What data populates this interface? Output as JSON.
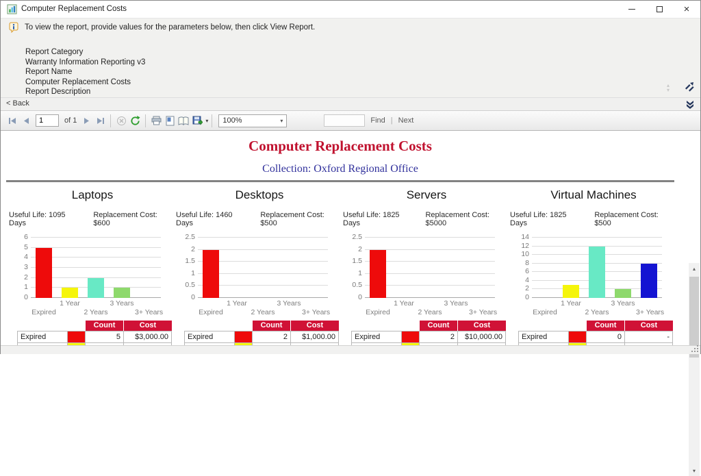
{
  "window": {
    "title": "Computer Replacement Costs"
  },
  "icons": {
    "minimize": "",
    "maximize": "",
    "close": "×",
    "caret_down": "▾",
    "scroll_up": "▴",
    "scroll_down": "▾"
  },
  "params": {
    "instruction": "To view the report, provide values for the parameters below, then click View Report.",
    "report_category_label": "Report Category",
    "report_category_value": "Warranty Information Reporting v3",
    "report_name_label": "Report Name",
    "report_name_value": "Computer Replacement Costs",
    "report_description_label": "Report Description",
    "back_label": "< Back"
  },
  "toolbar": {
    "page_value": "1",
    "page_of": "of 1",
    "zoom_value": "100%",
    "find_label": "Find",
    "divider": "|",
    "next_label": "Next"
  },
  "report": {
    "title": "Computer Replacement Costs",
    "subtitle": "Collection: Oxford Regional Office",
    "title_color": "#c0122f",
    "subtitle_color": "#31319c"
  },
  "colors": {
    "table_header_bg": "#d01236",
    "gridline": "#dcdcdc"
  },
  "sections": [
    {
      "name": "Laptops",
      "useful_life": "Useful Life: 1095 Days",
      "replacement_cost": "Replacement Cost: $600",
      "table": {
        "count_header": "Count",
        "cost_header": "Cost",
        "row_label": "Expired",
        "count": "5",
        "cost": "$3,000.00",
        "swatch_color": "#ee0b0b",
        "peek_color": "#f5f50b"
      }
    },
    {
      "name": "Desktops",
      "useful_life": "Useful Life: 1460 Days",
      "replacement_cost": "Replacement Cost: $500",
      "table": {
        "count_header": "Count",
        "cost_header": "Cost",
        "row_label": "Expired",
        "count": "2",
        "cost": "$1,000.00",
        "swatch_color": "#ee0b0b",
        "peek_color": "#f5f50b"
      }
    },
    {
      "name": "Servers",
      "useful_life": "Useful Life: 1825 Days",
      "replacement_cost": "Replacement Cost: $5000",
      "table": {
        "count_header": "Count",
        "cost_header": "Cost",
        "row_label": "Expired",
        "count": "2",
        "cost": "$10,000.00",
        "swatch_color": "#ee0b0b",
        "peek_color": "#f5f50b"
      }
    },
    {
      "name": "Virtual Machines",
      "useful_life": "Useful Life: 1825 Days",
      "replacement_cost": "Replacement Cost: $500",
      "table": {
        "count_header": "Count",
        "cost_header": "Cost",
        "row_label": "Expired",
        "count": "0",
        "cost": "-",
        "swatch_color": "#ee0b0b",
        "peek_color": "#f5f50b"
      }
    }
  ],
  "chart_data": [
    {
      "type": "bar",
      "title": "Laptops",
      "categories": [
        "Expired",
        "1 Year",
        "2 Years",
        "3 Years",
        "3+ Years"
      ],
      "values": [
        5,
        1,
        2,
        1,
        0
      ],
      "ylim": [
        0,
        6
      ],
      "yticks": [
        0,
        1,
        2,
        3,
        4,
        5,
        6
      ],
      "bar_colors": [
        "#ee0b0b",
        "#f5f50b",
        "#68e9c5",
        "#8ed96c",
        "#1414d2"
      ],
      "grid": true,
      "legend": false
    },
    {
      "type": "bar",
      "title": "Desktops",
      "categories": [
        "Expired",
        "1 Year",
        "2 Years",
        "3 Years",
        "3+ Years"
      ],
      "values": [
        2,
        0,
        0,
        0,
        0
      ],
      "ylim": [
        0,
        2.5
      ],
      "yticks": [
        0,
        0.5,
        1,
        1.5,
        2,
        2.5
      ],
      "bar_colors": [
        "#ee0b0b",
        "#f5f50b",
        "#68e9c5",
        "#8ed96c",
        "#1414d2"
      ],
      "grid": true,
      "legend": false
    },
    {
      "type": "bar",
      "title": "Servers",
      "categories": [
        "Expired",
        "1 Year",
        "2 Years",
        "3 Years",
        "3+ Years"
      ],
      "values": [
        2,
        0,
        0,
        0,
        0
      ],
      "ylim": [
        0,
        2.5
      ],
      "yticks": [
        0,
        0.5,
        1,
        1.5,
        2,
        2.5
      ],
      "bar_colors": [
        "#ee0b0b",
        "#f5f50b",
        "#68e9c5",
        "#8ed96c",
        "#1414d2"
      ],
      "grid": true,
      "legend": false
    },
    {
      "type": "bar",
      "title": "Virtual Machines",
      "categories": [
        "Expired",
        "1 Year",
        "2 Years",
        "3 Years",
        "3+ Years"
      ],
      "values": [
        0,
        3,
        12,
        2,
        8
      ],
      "ylim": [
        0,
        14
      ],
      "yticks": [
        0,
        2,
        4,
        6,
        8,
        10,
        12,
        14
      ],
      "bar_colors": [
        "#ee0b0b",
        "#f5f50b",
        "#68e9c5",
        "#8ed96c",
        "#1414d2"
      ],
      "grid": true,
      "legend": false
    }
  ]
}
